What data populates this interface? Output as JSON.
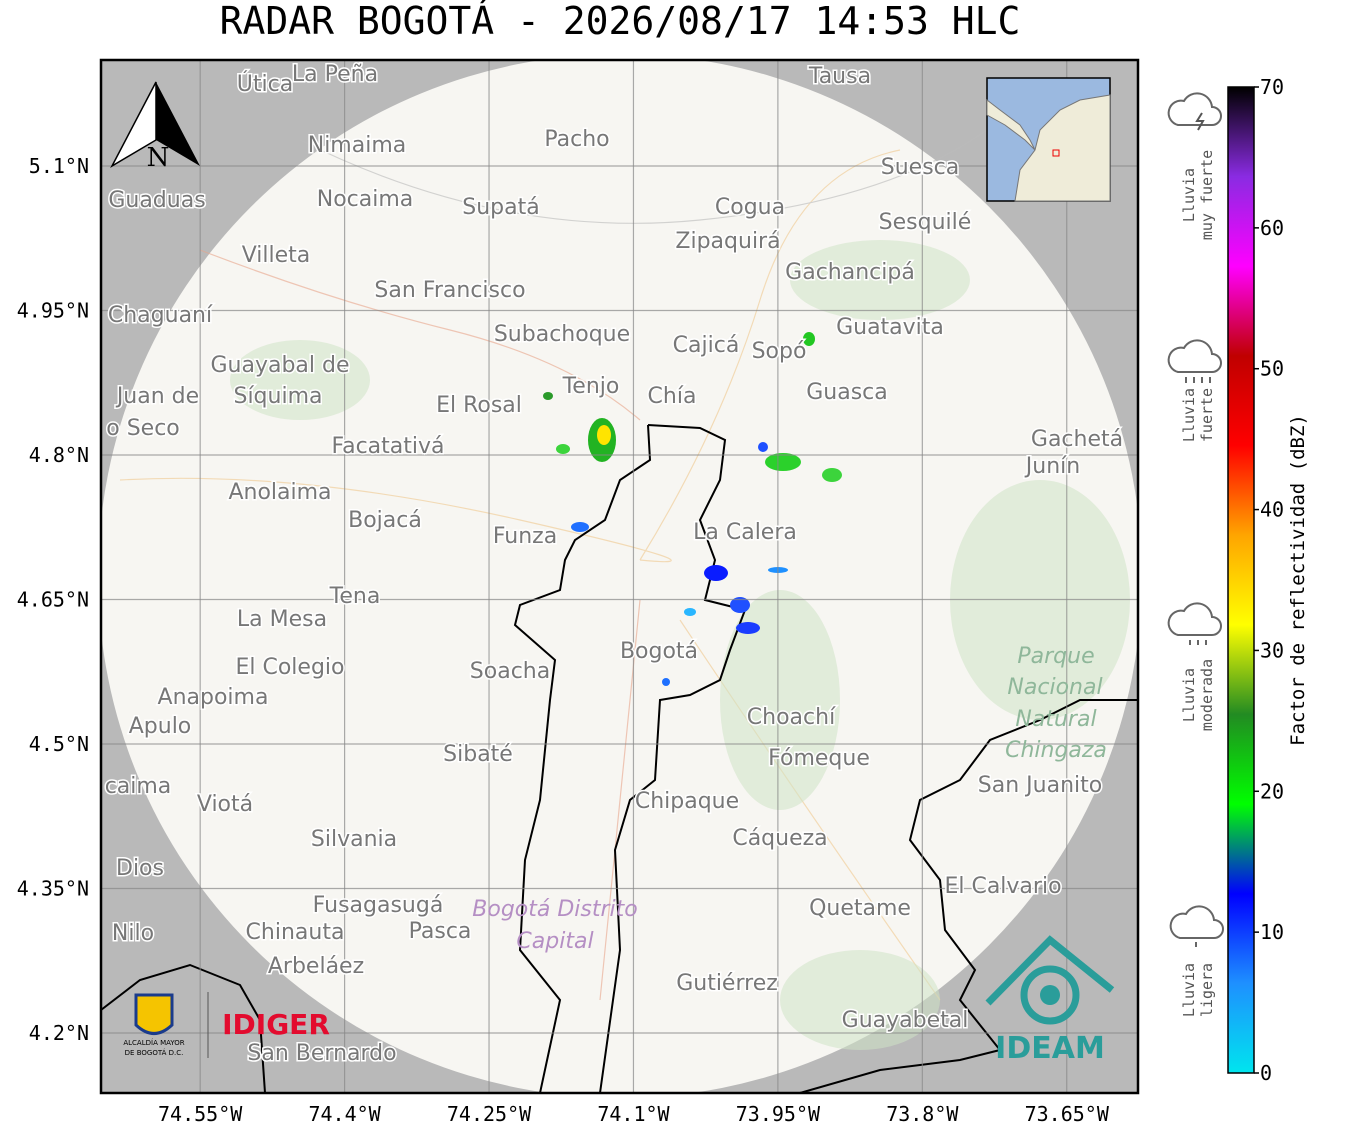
{
  "title": "RADAR BOGOTÁ - 2026/08/17 14:53 HLC",
  "map": {
    "latlim": [
      4.1377,
      5.21
    ],
    "lonlim": [
      -74.653,
      -73.576
    ],
    "lat_ticks": [
      {
        "value": 5.1,
        "label": "5.1°N"
      },
      {
        "value": 4.95,
        "label": "4.95°N"
      },
      {
        "value": 4.8,
        "label": "4.8°N"
      },
      {
        "value": 4.65,
        "label": "4.65°N"
      },
      {
        "value": 4.5,
        "label": "4.5°N"
      },
      {
        "value": 4.35,
        "label": "4.35°N"
      },
      {
        "value": 4.2,
        "label": "4.2°N"
      }
    ],
    "lon_ticks": [
      {
        "value": -74.55,
        "label": "74.55°W"
      },
      {
        "value": -74.4,
        "label": "74.4°W"
      },
      {
        "value": -74.25,
        "label": "74.25°W"
      },
      {
        "value": -74.1,
        "label": "74.1°W"
      },
      {
        "value": -73.95,
        "label": "73.95°W"
      },
      {
        "value": -73.8,
        "label": "73.8°W"
      },
      {
        "value": -73.65,
        "label": "73.65°W"
      }
    ],
    "north": "N",
    "places": [
      "Útica",
      "La Peña",
      "Tausa",
      "Pacho",
      "Nimaima",
      "Guaduas",
      "Nocaima",
      "Supatá",
      "Cogua",
      "Suesca",
      "Zipaquirá",
      "Sesquilé",
      "Villeta",
      "Gachancipá",
      "San Francisco",
      "Chaguaní",
      "Guatavita",
      "Subachoque",
      "Cajicá",
      "Sopó",
      "Guayabal de",
      "Síquima",
      "Juan de",
      "o Seco",
      "Tenjo",
      "Chía",
      "Guasca",
      "El Rosal",
      "Facatativá",
      "Gachetá",
      "Junín",
      "Anolaima",
      "Bojacá",
      "Funza",
      "La Calera",
      "Tena",
      "La Mesa",
      "Bogotá",
      "Soacha",
      "El Colegio",
      "Parque",
      "Nacional",
      "Natural",
      "Chingaza",
      "Anapoima",
      "Apulo",
      "Choachí",
      "Sibaté",
      "Fómeque",
      "San Juanito",
      "caima",
      "Viotá",
      "Chipaque",
      "Silvania",
      "Cáqueza",
      "Dios",
      "El Calvario",
      "Fusagasugá",
      "Bogotá Distrito",
      "Capital",
      "Quetame",
      "Nilo",
      "Chinauta",
      "Pasca",
      "Arbeláez",
      "Gutiérrez",
      "Guayabetal",
      "San Bernardo"
    ]
  },
  "colorbar": {
    "label": "Factor de reflectividad (dBZ)",
    "lim": [
      0,
      70
    ],
    "ticks": [
      0,
      10,
      20,
      30,
      40,
      50,
      60,
      70
    ],
    "colors": [
      "#00e5ee",
      "#1e90ff",
      "#0000ff",
      "#00ff00",
      "#228b22",
      "#ffff00",
      "#ffa500",
      "#ff0000",
      "#c00000",
      "#ff00ff",
      "#8a2be2",
      "#000000"
    ]
  },
  "rain_levels": [
    [
      "Lluvia",
      "muy fuerte"
    ],
    [
      "Lluvia",
      "fuerte"
    ],
    [
      "Lluvia",
      "moderada"
    ],
    [
      "Lluvia",
      "ligera"
    ]
  ],
  "logos": {
    "alcaldia": [
      "ALCALDÍA MAYOR",
      "DE BOGOTÁ D.C."
    ],
    "idiger": "IDIGER",
    "ideam": "IDEAM"
  }
}
